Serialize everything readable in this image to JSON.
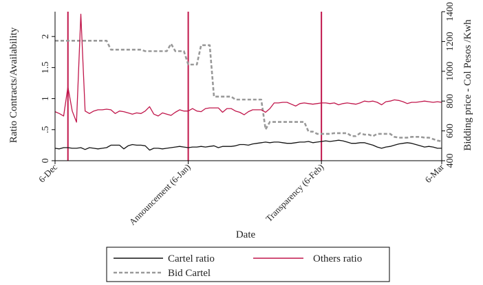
{
  "chart_data": {
    "type": "line",
    "xlabel": "Date",
    "ylabel_left": "Ratio Contracts/Availability",
    "ylabel_right": "Bidding price - Col Pesos /Kwh",
    "x_domain": [
      0,
      90
    ],
    "x_ticks": [
      {
        "x": 0,
        "label": "6-Dec"
      },
      {
        "x": 31,
        "label": "Announcement (6-Jan)"
      },
      {
        "x": 62,
        "label": "Transparency (6-Feb)"
      },
      {
        "x": 90,
        "label": "6-Mar"
      }
    ],
    "vlines": [
      3,
      31,
      62
    ],
    "ylim_left": [
      0,
      2.4
    ],
    "yticks_left": [
      {
        "v": 0,
        "label": "0"
      },
      {
        "v": 0.5,
        "label": ".5"
      },
      {
        "v": 1,
        "label": "1"
      },
      {
        "v": 1.5,
        "label": "1.5"
      },
      {
        "v": 2,
        "label": "2"
      }
    ],
    "ylim_right": [
      400,
      1400
    ],
    "yticks_right": [
      400,
      600,
      800,
      1000,
      1200,
      1400
    ],
    "grid": false,
    "legend_position": "bottom",
    "series": [
      {
        "name": "Cartel ratio",
        "axis": "left",
        "color": "#111111",
        "style": "solid",
        "x": [
          0,
          1,
          2,
          3,
          4,
          5,
          6,
          7,
          8,
          9,
          10,
          11,
          12,
          13,
          14,
          15,
          16,
          17,
          18,
          19,
          20,
          21,
          22,
          23,
          24,
          25,
          26,
          27,
          28,
          29,
          30,
          31,
          32,
          33,
          34,
          35,
          36,
          37,
          38,
          39,
          40,
          41,
          42,
          43,
          44,
          45,
          46,
          47,
          48,
          49,
          50,
          51,
          52,
          53,
          54,
          55,
          56,
          57,
          58,
          59,
          60,
          61,
          62,
          63,
          64,
          65,
          66,
          67,
          68,
          69,
          70,
          71,
          72,
          73,
          74,
          75,
          76,
          77,
          78,
          79,
          80,
          81,
          82,
          83,
          84,
          85,
          86,
          87,
          88,
          89,
          90
        ],
        "y": [
          0.2,
          0.19,
          0.21,
          0.21,
          0.2,
          0.2,
          0.21,
          0.18,
          0.21,
          0.2,
          0.19,
          0.2,
          0.21,
          0.25,
          0.25,
          0.25,
          0.19,
          0.24,
          0.26,
          0.25,
          0.25,
          0.24,
          0.17,
          0.2,
          0.2,
          0.19,
          0.2,
          0.21,
          0.22,
          0.23,
          0.22,
          0.21,
          0.22,
          0.22,
          0.23,
          0.22,
          0.23,
          0.24,
          0.21,
          0.23,
          0.23,
          0.23,
          0.24,
          0.26,
          0.26,
          0.25,
          0.27,
          0.28,
          0.29,
          0.3,
          0.29,
          0.3,
          0.3,
          0.29,
          0.28,
          0.28,
          0.29,
          0.3,
          0.3,
          0.31,
          0.29,
          0.3,
          0.31,
          0.32,
          0.31,
          0.32,
          0.33,
          0.32,
          0.3,
          0.28,
          0.28,
          0.29,
          0.29,
          0.27,
          0.25,
          0.22,
          0.2,
          0.22,
          0.23,
          0.25,
          0.27,
          0.28,
          0.29,
          0.28,
          0.26,
          0.24,
          0.22,
          0.23,
          0.22,
          0.2,
          0.2
        ]
      },
      {
        "name": "Others ratio",
        "axis": "left",
        "color": "#c0154a",
        "style": "solid",
        "x": [
          0,
          1,
          2,
          3,
          4,
          5,
          6,
          7,
          8,
          9,
          10,
          11,
          12,
          13,
          14,
          15,
          16,
          17,
          18,
          19,
          20,
          21,
          22,
          23,
          24,
          25,
          26,
          27,
          28,
          29,
          30,
          31,
          32,
          33,
          34,
          35,
          36,
          37,
          38,
          39,
          40,
          41,
          42,
          43,
          44,
          45,
          46,
          47,
          48,
          49,
          50,
          51,
          52,
          53,
          54,
          55,
          56,
          57,
          58,
          59,
          60,
          61,
          62,
          63,
          64,
          65,
          66,
          67,
          68,
          69,
          70,
          71,
          72,
          73,
          74,
          75,
          76,
          77,
          78,
          79,
          80,
          81,
          82,
          83,
          84,
          85,
          86,
          87,
          88,
          89,
          90
        ],
        "y": [
          0.79,
          0.76,
          0.72,
          1.19,
          0.8,
          0.62,
          2.36,
          0.8,
          0.76,
          0.8,
          0.82,
          0.82,
          0.83,
          0.82,
          0.76,
          0.8,
          0.79,
          0.77,
          0.75,
          0.77,
          0.76,
          0.8,
          0.87,
          0.75,
          0.72,
          0.77,
          0.75,
          0.73,
          0.78,
          0.82,
          0.8,
          0.8,
          0.84,
          0.8,
          0.79,
          0.84,
          0.85,
          0.85,
          0.85,
          0.78,
          0.84,
          0.84,
          0.8,
          0.78,
          0.74,
          0.79,
          0.82,
          0.82,
          0.82,
          0.78,
          0.84,
          0.93,
          0.93,
          0.94,
          0.94,
          0.91,
          0.88,
          0.92,
          0.93,
          0.92,
          0.91,
          0.92,
          0.93,
          0.93,
          0.92,
          0.93,
          0.9,
          0.92,
          0.93,
          0.92,
          0.91,
          0.93,
          0.96,
          0.95,
          0.96,
          0.94,
          0.9,
          0.95,
          0.96,
          0.98,
          0.97,
          0.95,
          0.92,
          0.94,
          0.94,
          0.95,
          0.96,
          0.95,
          0.94,
          0.95,
          0.94
        ]
      },
      {
        "name": "Bid Cartel",
        "axis": "right",
        "color": "#999999",
        "style": "dashed",
        "x": [
          0,
          1,
          2,
          3,
          4,
          5,
          6,
          7,
          8,
          9,
          10,
          11,
          12,
          13,
          14,
          15,
          16,
          17,
          18,
          19,
          20,
          21,
          22,
          23,
          24,
          25,
          26,
          27,
          28,
          29,
          30,
          31,
          32,
          33,
          34,
          35,
          36,
          37,
          38,
          39,
          40,
          41,
          42,
          43,
          44,
          45,
          46,
          47,
          48,
          49,
          50,
          51,
          52,
          53,
          54,
          55,
          56,
          57,
          58,
          59,
          60,
          61,
          62,
          63,
          64,
          65,
          66,
          67,
          68,
          69,
          70,
          71,
          72,
          73,
          74,
          75,
          76,
          77,
          78,
          79,
          80,
          81,
          82,
          83,
          84,
          85,
          86,
          87,
          88,
          89,
          90
        ],
        "y": [
          1205,
          1205,
          1205,
          1205,
          1205,
          1205,
          1205,
          1205,
          1205,
          1205,
          1205,
          1205,
          1205,
          1145,
          1145,
          1145,
          1145,
          1145,
          1145,
          1145,
          1145,
          1135,
          1135,
          1135,
          1135,
          1135,
          1135,
          1185,
          1135,
          1135,
          1135,
          1045,
          1045,
          1045,
          1175,
          1175,
          1175,
          830,
          830,
          830,
          830,
          830,
          810,
          810,
          810,
          810,
          810,
          810,
          810,
          610,
          660,
          660,
          660,
          660,
          660,
          660,
          660,
          660,
          660,
          595,
          595,
          580,
          580,
          580,
          580,
          585,
          585,
          585,
          585,
          565,
          565,
          585,
          575,
          575,
          565,
          580,
          580,
          580,
          580,
          560,
          555,
          555,
          555,
          560,
          560,
          560,
          555,
          555,
          545,
          535,
          530
        ]
      }
    ]
  }
}
